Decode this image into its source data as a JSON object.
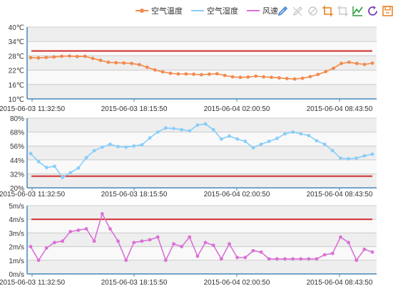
{
  "legend": [
    {
      "name": "空气温度",
      "color": "#f28a4b",
      "marker": true
    },
    {
      "name": "空气湿度",
      "color": "#87cefa",
      "marker": false
    },
    {
      "name": "风速",
      "color": "#da70d6",
      "marker": false
    }
  ],
  "toolbox": [
    {
      "name": "mark-icon",
      "color": "#3f7fd3"
    },
    {
      "name": "mark-undo-icon",
      "color": "#c8c8c8"
    },
    {
      "name": "mark-clear-icon",
      "color": "#c8c8c8"
    },
    {
      "name": "data-zoom-icon",
      "color": "#e8801c"
    },
    {
      "name": "data-zoom-reset-icon",
      "color": "#c8c8c8"
    },
    {
      "name": "line-chart-icon",
      "color": "#2a9a3a"
    },
    {
      "name": "restore-icon",
      "color": "#7a3fb5"
    },
    {
      "name": "save-image-icon",
      "color": "#e8801c"
    }
  ],
  "chart_data": [
    {
      "type": "line",
      "series": [
        {
          "name": "空气温度",
          "color": "#f28a4b",
          "values": [
            27.2,
            27.1,
            27.3,
            27.5,
            27.8,
            27.9,
            27.7,
            27.8,
            26.9,
            26.1,
            25.3,
            25.1,
            25.0,
            24.8,
            24.3,
            23.2,
            22.1,
            21.3,
            20.7,
            20.4,
            20.4,
            20.3,
            20.1,
            20.3,
            20.5,
            19.8,
            19.2,
            19.0,
            19.1,
            19.5,
            19.2,
            19.0,
            18.8,
            18.5,
            18.3,
            18.6,
            19.3,
            20.2,
            21.4,
            22.8,
            24.8,
            25.3,
            24.8,
            24.4,
            24.9
          ]
        }
      ],
      "ylim": [
        10,
        40
      ],
      "yticks": [
        "10℃",
        "16℃",
        "22℃",
        "28℃",
        "34℃",
        "40℃"
      ],
      "threshold": 30,
      "xtick_labels": [
        "2015-06-03 11:32:50",
        "2015-06-03 18:15:50",
        "2015-06-04 02:00:50",
        "2015-06-04 08:43:50"
      ]
    },
    {
      "type": "line",
      "series": [
        {
          "name": "空气湿度",
          "color": "#87cefa",
          "values": [
            49.5,
            42.5,
            37.5,
            38.5,
            29.0,
            33.0,
            37.0,
            46.0,
            52.0,
            55.0,
            57.5,
            55.5,
            55.0,
            56.0,
            57.0,
            63.0,
            68.0,
            71.5,
            71.0,
            70.0,
            69.0,
            74.0,
            75.0,
            70.0,
            62.0,
            64.5,
            62.0,
            60.0,
            54.5,
            57.5,
            60.0,
            62.5,
            66.5,
            68.0,
            66.5,
            65.0,
            60.5,
            57.5,
            52.0,
            45.5,
            45.0,
            45.5,
            47.5,
            49.0
          ]
        }
      ],
      "ylim": [
        20,
        80
      ],
      "yticks": [
        "20%",
        "32%",
        "44%",
        "56%",
        "68%",
        "80%"
      ],
      "threshold": 30,
      "xtick_labels": [
        "2015-06-03 11:32:50",
        "2015-06-03 18:15:50",
        "2015-06-04 02:00:50",
        "2015-06-04 08:43:50"
      ]
    },
    {
      "type": "line",
      "series": [
        {
          "name": "风速",
          "color": "#da70d6",
          "values": [
            2.0,
            1.0,
            1.9,
            2.3,
            2.4,
            3.1,
            3.2,
            3.3,
            2.4,
            4.4,
            3.3,
            2.4,
            1.0,
            2.3,
            2.4,
            2.5,
            2.7,
            1.0,
            2.2,
            2.0,
            2.7,
            1.3,
            2.3,
            2.1,
            1.1,
            2.2,
            1.2,
            1.2,
            1.7,
            1.6,
            1.1,
            1.1,
            1.1,
            1.1,
            1.1,
            1.1,
            1.1,
            1.4,
            1.5,
            2.7,
            2.3,
            1.0,
            1.8,
            1.6
          ]
        }
      ],
      "ylim": [
        0,
        5
      ],
      "yticks": [
        "0m/s",
        "1m/s",
        "2m/s",
        "3m/s",
        "4m/s",
        "5m/s"
      ],
      "threshold": 4,
      "xtick_labels": [
        "2015-06-03 11:32:50",
        "2015-06-03 18:15:50",
        "2015-06-04 02:00:50",
        "2015-06-04 08:43:50"
      ]
    }
  ]
}
